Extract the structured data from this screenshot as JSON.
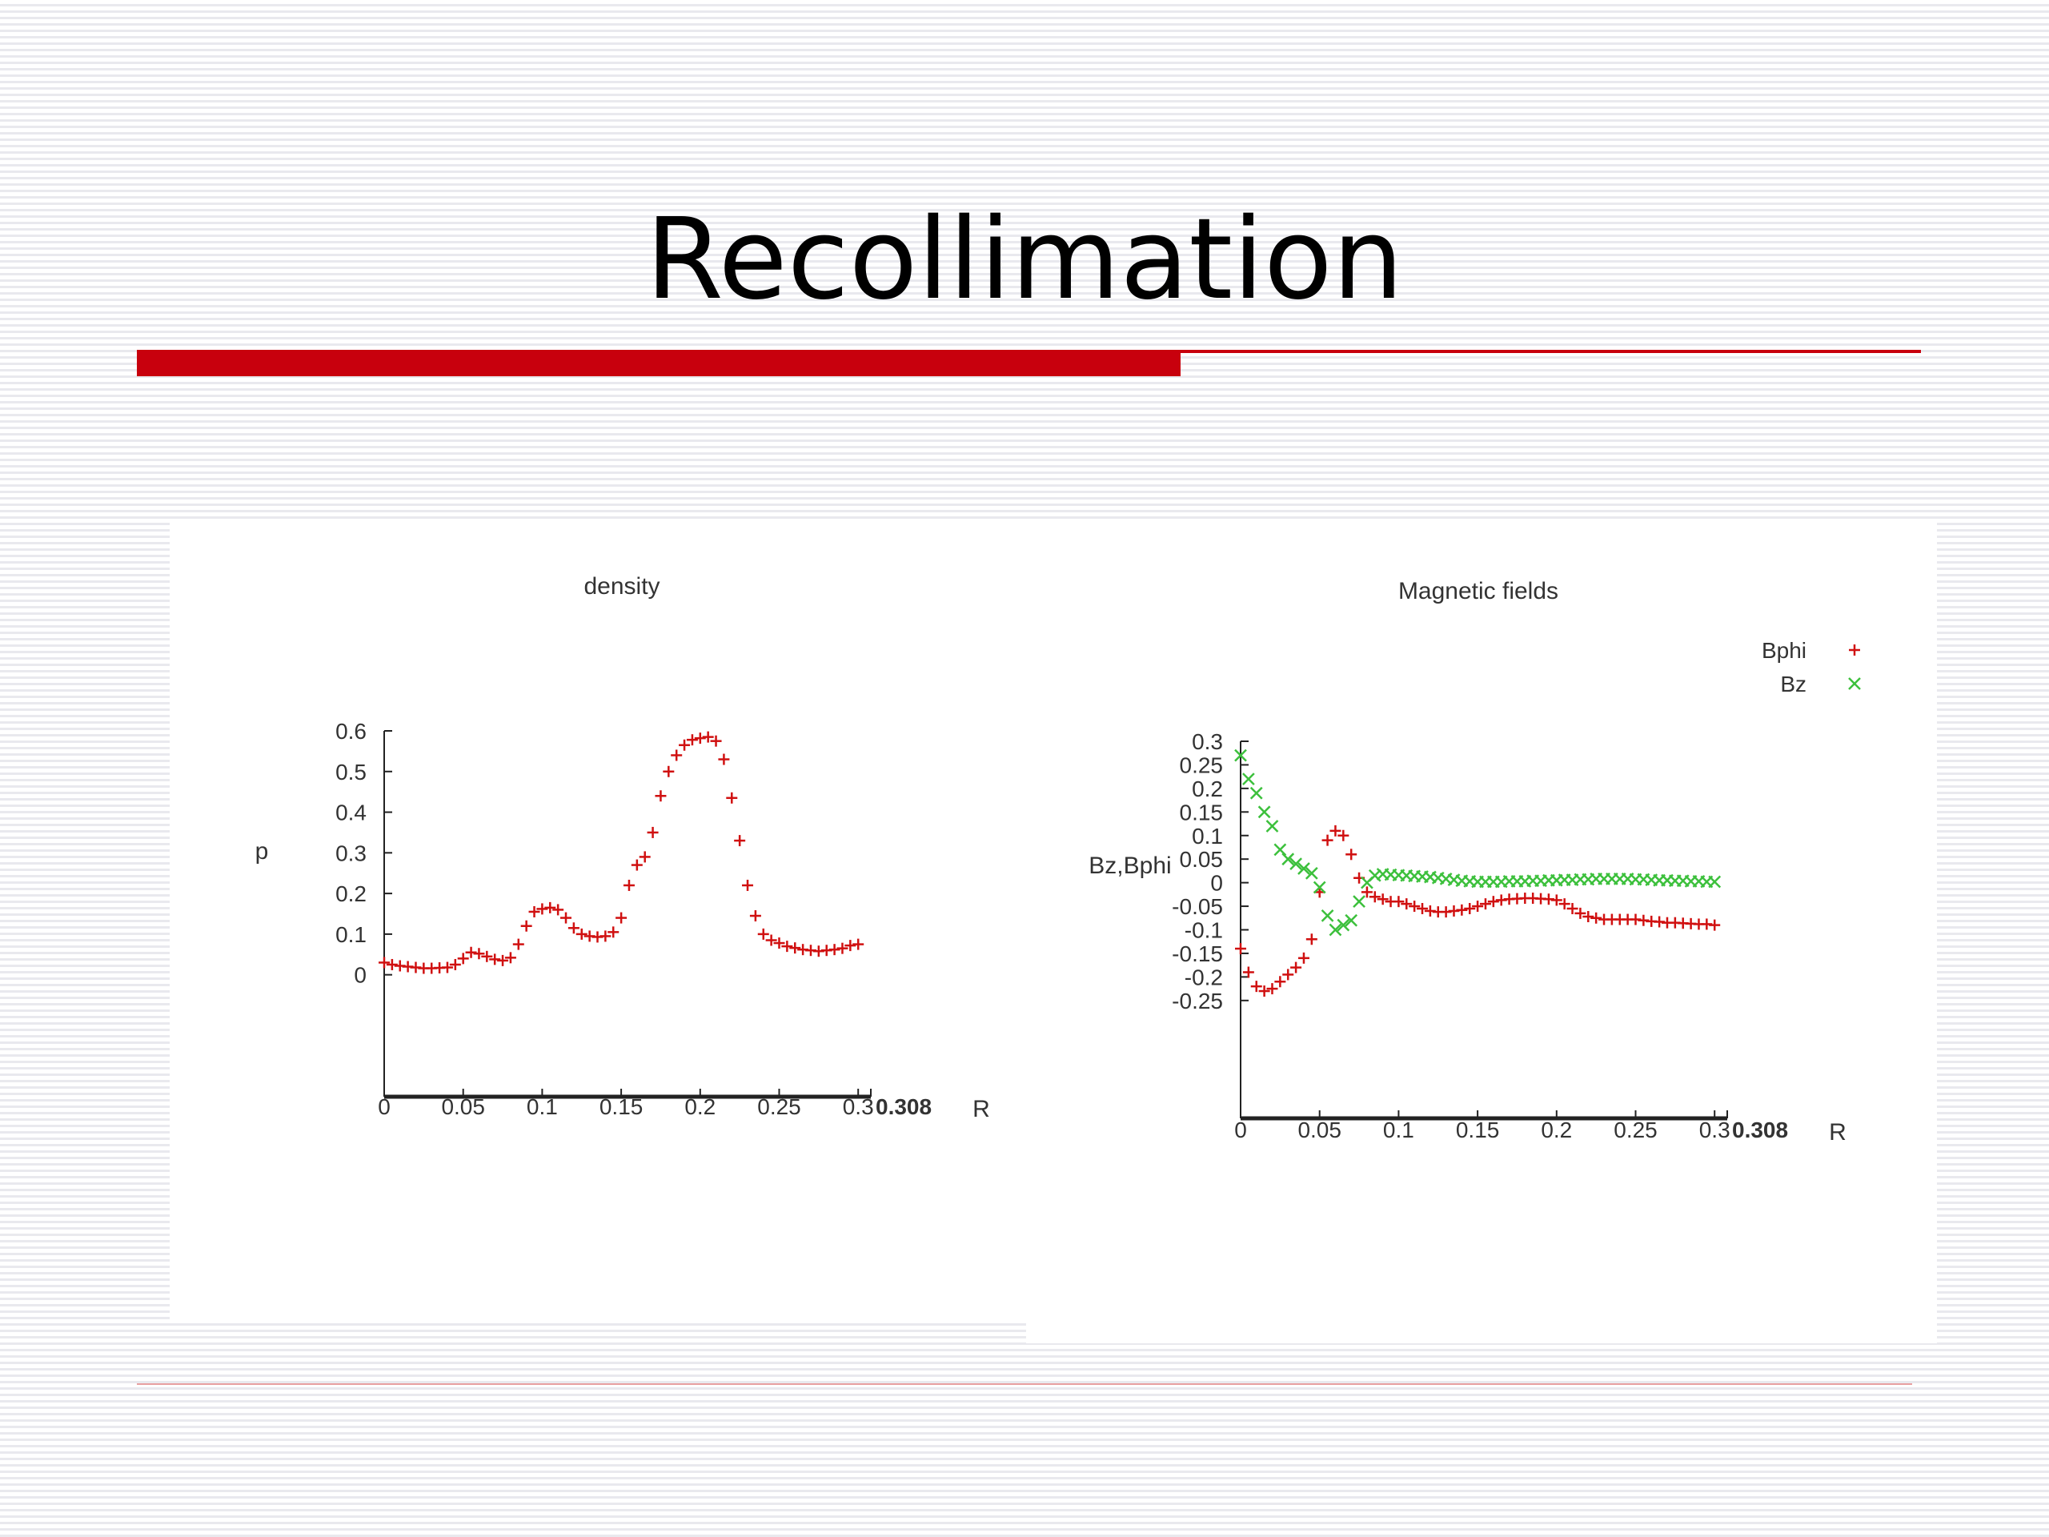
{
  "slide": {
    "title": "Recollimation",
    "accent_color": "#c8000d"
  },
  "chart_data": [
    {
      "type": "scatter",
      "title": "density",
      "xlabel": "R",
      "ylabel": "p",
      "xlim": [
        0,
        0.308
      ],
      "ylim": [
        -0.3,
        0.6
      ],
      "x_ticks": [
        "0",
        "0.05",
        "0.1",
        "0.15",
        "0.2",
        "0.25",
        "0.3",
        "0.308"
      ],
      "y_ticks": [
        "0",
        "0.1",
        "0.2",
        "0.3",
        "0.4",
        "0.5",
        "0.6"
      ],
      "grid": false,
      "series": [
        {
          "name": "",
          "color": "#d01010",
          "marker": "plus",
          "points": [
            [
              0,
              0.03
            ],
            [
              0.005,
              0.025
            ],
            [
              0.01,
              0.022
            ],
            [
              0.015,
              0.02
            ],
            [
              0.02,
              0.018
            ],
            [
              0.025,
              0.016
            ],
            [
              0.03,
              0.016
            ],
            [
              0.035,
              0.017
            ],
            [
              0.04,
              0.018
            ],
            [
              0.045,
              0.025
            ],
            [
              0.05,
              0.04
            ],
            [
              0.055,
              0.055
            ],
            [
              0.06,
              0.052
            ],
            [
              0.065,
              0.045
            ],
            [
              0.07,
              0.038
            ],
            [
              0.075,
              0.035
            ],
            [
              0.08,
              0.042
            ],
            [
              0.085,
              0.075
            ],
            [
              0.09,
              0.12
            ],
            [
              0.095,
              0.155
            ],
            [
              0.1,
              0.162
            ],
            [
              0.105,
              0.165
            ],
            [
              0.11,
              0.16
            ],
            [
              0.115,
              0.14
            ],
            [
              0.12,
              0.115
            ],
            [
              0.125,
              0.1
            ],
            [
              0.13,
              0.095
            ],
            [
              0.135,
              0.093
            ],
            [
              0.14,
              0.095
            ],
            [
              0.145,
              0.105
            ],
            [
              0.15,
              0.14
            ],
            [
              0.155,
              0.22
            ],
            [
              0.16,
              0.27
            ],
            [
              0.165,
              0.29
            ],
            [
              0.17,
              0.35
            ],
            [
              0.175,
              0.44
            ],
            [
              0.18,
              0.5
            ],
            [
              0.185,
              0.54
            ],
            [
              0.19,
              0.565
            ],
            [
              0.195,
              0.578
            ],
            [
              0.2,
              0.582
            ],
            [
              0.205,
              0.585
            ],
            [
              0.21,
              0.575
            ],
            [
              0.215,
              0.53
            ],
            [
              0.22,
              0.435
            ],
            [
              0.225,
              0.33
            ],
            [
              0.23,
              0.22
            ],
            [
              0.235,
              0.145
            ],
            [
              0.24,
              0.1
            ],
            [
              0.245,
              0.085
            ],
            [
              0.25,
              0.078
            ],
            [
              0.255,
              0.07
            ],
            [
              0.26,
              0.066
            ],
            [
              0.265,
              0.062
            ],
            [
              0.27,
              0.06
            ],
            [
              0.275,
              0.058
            ],
            [
              0.28,
              0.06
            ],
            [
              0.285,
              0.062
            ],
            [
              0.29,
              0.065
            ],
            [
              0.295,
              0.072
            ],
            [
              0.3,
              0.075
            ]
          ]
        }
      ]
    },
    {
      "type": "scatter",
      "title": "Magnetic fields",
      "xlabel": "R",
      "ylabel": "Bz,Bphi",
      "xlim": [
        0,
        0.308
      ],
      "ylim": [
        -0.5,
        0.3
      ],
      "x_ticks": [
        "0",
        "0.05",
        "0.1",
        "0.15",
        "0.2",
        "0.25",
        "0.3",
        "0.308"
      ],
      "y_ticks": [
        "0.3",
        "0.25",
        "0.2",
        "0.15",
        "0.1",
        "0.05",
        "0",
        "-0.05",
        "-0.1",
        "-0.15",
        "-0.2",
        "-0.25"
      ],
      "grid": false,
      "legend_position": "top-right",
      "series": [
        {
          "name": "Bphi",
          "color": "#d01010",
          "marker": "plus",
          "points": [
            [
              0,
              -0.14
            ],
            [
              0.005,
              -0.19
            ],
            [
              0.01,
              -0.22
            ],
            [
              0.015,
              -0.23
            ],
            [
              0.02,
              -0.225
            ],
            [
              0.025,
              -0.21
            ],
            [
              0.03,
              -0.195
            ],
            [
              0.035,
              -0.18
            ],
            [
              0.04,
              -0.16
            ],
            [
              0.045,
              -0.12
            ],
            [
              0.05,
              -0.02
            ],
            [
              0.055,
              0.09
            ],
            [
              0.06,
              0.11
            ],
            [
              0.065,
              0.1
            ],
            [
              0.07,
              0.06
            ],
            [
              0.075,
              0.01
            ],
            [
              0.08,
              -0.02
            ],
            [
              0.085,
              -0.03
            ],
            [
              0.09,
              -0.035
            ],
            [
              0.095,
              -0.04
            ],
            [
              0.1,
              -0.04
            ],
            [
              0.105,
              -0.045
            ],
            [
              0.11,
              -0.05
            ],
            [
              0.115,
              -0.055
            ],
            [
              0.12,
              -0.06
            ],
            [
              0.125,
              -0.062
            ],
            [
              0.13,
              -0.062
            ],
            [
              0.135,
              -0.06
            ],
            [
              0.14,
              -0.058
            ],
            [
              0.145,
              -0.055
            ],
            [
              0.15,
              -0.05
            ],
            [
              0.155,
              -0.045
            ],
            [
              0.16,
              -0.04
            ],
            [
              0.165,
              -0.037
            ],
            [
              0.17,
              -0.035
            ],
            [
              0.175,
              -0.034
            ],
            [
              0.18,
              -0.033
            ],
            [
              0.185,
              -0.033
            ],
            [
              0.19,
              -0.034
            ],
            [
              0.195,
              -0.035
            ],
            [
              0.2,
              -0.037
            ],
            [
              0.205,
              -0.045
            ],
            [
              0.21,
              -0.055
            ],
            [
              0.215,
              -0.065
            ],
            [
              0.22,
              -0.072
            ],
            [
              0.225,
              -0.075
            ],
            [
              0.23,
              -0.078
            ],
            [
              0.235,
              -0.078
            ],
            [
              0.24,
              -0.078
            ],
            [
              0.245,
              -0.078
            ],
            [
              0.25,
              -0.078
            ],
            [
              0.255,
              -0.08
            ],
            [
              0.26,
              -0.082
            ],
            [
              0.265,
              -0.083
            ],
            [
              0.27,
              -0.085
            ],
            [
              0.275,
              -0.085
            ],
            [
              0.28,
              -0.086
            ],
            [
              0.285,
              -0.087
            ],
            [
              0.29,
              -0.088
            ],
            [
              0.295,
              -0.088
            ],
            [
              0.3,
              -0.09
            ]
          ]
        },
        {
          "name": "Bz",
          "color": "#3cc03c",
          "marker": "cross",
          "points": [
            [
              0,
              0.27
            ],
            [
              0.005,
              0.22
            ],
            [
              0.01,
              0.19
            ],
            [
              0.015,
              0.15
            ],
            [
              0.02,
              0.12
            ],
            [
              0.025,
              0.07
            ],
            [
              0.03,
              0.05
            ],
            [
              0.035,
              0.04
            ],
            [
              0.04,
              0.03
            ],
            [
              0.045,
              0.02
            ],
            [
              0.05,
              -0.01
            ],
            [
              0.055,
              -0.07
            ],
            [
              0.06,
              -0.1
            ],
            [
              0.065,
              -0.09
            ],
            [
              0.07,
              -0.08
            ],
            [
              0.075,
              -0.04
            ],
            [
              0.08,
              0.0
            ],
            [
              0.085,
              0.015
            ],
            [
              0.09,
              0.018
            ],
            [
              0.095,
              0.017
            ],
            [
              0.1,
              0.016
            ],
            [
              0.105,
              0.015
            ],
            [
              0.11,
              0.014
            ],
            [
              0.115,
              0.013
            ],
            [
              0.12,
              0.012
            ],
            [
              0.125,
              0.01
            ],
            [
              0.13,
              0.008
            ],
            [
              0.135,
              0.006
            ],
            [
              0.14,
              0.004
            ],
            [
              0.145,
              0.003
            ],
            [
              0.15,
              0.002
            ],
            [
              0.155,
              0.002
            ],
            [
              0.16,
              0.002
            ],
            [
              0.165,
              0.002
            ],
            [
              0.17,
              0.003
            ],
            [
              0.175,
              0.003
            ],
            [
              0.18,
              0.003
            ],
            [
              0.185,
              0.004
            ],
            [
              0.19,
              0.004
            ],
            [
              0.195,
              0.005
            ],
            [
              0.2,
              0.005
            ],
            [
              0.205,
              0.006
            ],
            [
              0.21,
              0.006
            ],
            [
              0.215,
              0.007
            ],
            [
              0.22,
              0.007
            ],
            [
              0.225,
              0.008
            ],
            [
              0.23,
              0.008
            ],
            [
              0.235,
              0.008
            ],
            [
              0.24,
              0.008
            ],
            [
              0.245,
              0.008
            ],
            [
              0.25,
              0.007
            ],
            [
              0.255,
              0.007
            ],
            [
              0.26,
              0.006
            ],
            [
              0.265,
              0.005
            ],
            [
              0.27,
              0.005
            ],
            [
              0.275,
              0.004
            ],
            [
              0.28,
              0.004
            ],
            [
              0.285,
              0.003
            ],
            [
              0.29,
              0.003
            ],
            [
              0.295,
              0.002
            ],
            [
              0.3,
              0.002
            ]
          ]
        }
      ]
    }
  ]
}
